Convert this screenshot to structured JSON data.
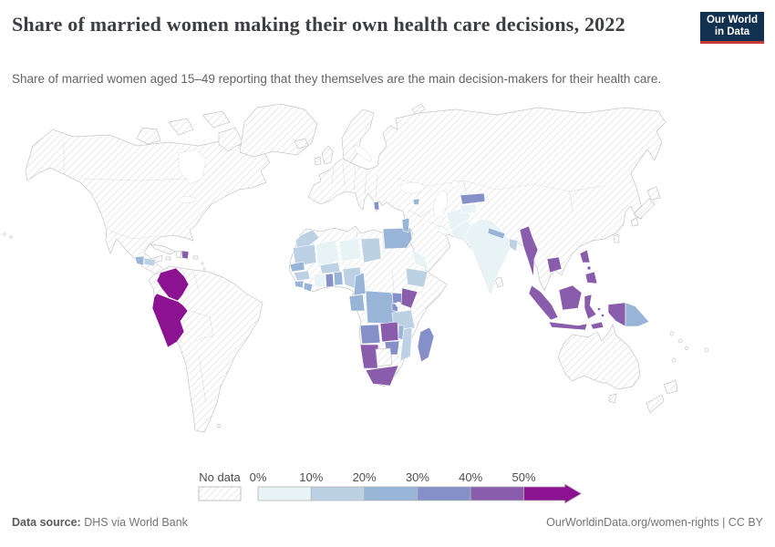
{
  "header": {
    "title": "Share of married women making their own health care decisions, 2022",
    "subtitle": "Share of married women aged 15–49 reporting that they themselves are the main decision-makers for their health care.",
    "logo": {
      "line1": "Our World",
      "line2": "in Data"
    }
  },
  "legend": {
    "no_data_label": "No data",
    "bins": [
      {
        "label": "0%",
        "color": "#e7f3f5"
      },
      {
        "label": "10%",
        "color": "#bdd1e5"
      },
      {
        "label": "20%",
        "color": "#98b5d8"
      },
      {
        "label": "30%",
        "color": "#8590c8"
      },
      {
        "label": "40%",
        "color": "#8a5cac"
      },
      {
        "label": "50%",
        "color": "#8b1290"
      }
    ]
  },
  "footer": {
    "source_label": "Data source:",
    "source_value": " DHS via World Bank",
    "link": "OurWorldinData.org/women-rights | CC BY"
  },
  "chart_data": {
    "type": "choropleth-map",
    "title": "Share of married women making their own health care decisions",
    "year": "2022",
    "unit": "% of married women aged 15–49",
    "legend_bins": [
      "0–10%",
      "10–20%",
      "20–30%",
      "30–40%",
      "40–50%",
      "50%+"
    ],
    "bin_colors": [
      "#e7f3f5",
      "#bdd1e5",
      "#98b5d8",
      "#8590c8",
      "#8a5cac",
      "#8b1290"
    ],
    "country_bins": {
      "guatemala": 2,
      "honduras": 1,
      "dominican-republic": 4,
      "colombia": 5,
      "peru": 5,
      "morocco": 1,
      "mauritania": 1,
      "mali": 0,
      "niger": 0,
      "chad": 1,
      "senegal": 2,
      "guinea": 1,
      "sierra-leone": 2,
      "liberia": 2,
      "cote-divoire": 0,
      "ghana": 3,
      "togo-benin": 2,
      "burkina-faso": 1,
      "nigeria": 1,
      "cameroon": 2,
      "gabon-congo": 2,
      "dr-congo": 2,
      "uganda": 3,
      "kenya": 4,
      "rwanda-burundi": 3,
      "tanzania": 1,
      "ethiopia": 1,
      "egypt": 2,
      "angola": 3,
      "zambia": 4,
      "malawi": 2,
      "mozambique": 1,
      "zimbabwe": 3,
      "namibia": 4,
      "south-africa": 4,
      "madagascar": 3,
      "albania": 3,
      "armenia": 2,
      "jordan": 2,
      "yemen": 0,
      "afghanistan": 0,
      "pakistan": 0,
      "tajikistan": 0,
      "kyrgyzstan": 3,
      "india": 0,
      "nepal": 2,
      "bangladesh": 1,
      "myanmar": 4,
      "cambodia": 4,
      "philippines": 4,
      "indonesia": 4,
      "papua-new-guinea": 2
    },
    "no_data_regions": [
      "United States",
      "Canada",
      "Mexico",
      "Cuba",
      "Haiti",
      "Brazil",
      "Venezuela",
      "Ecuador",
      "Bolivia",
      "Chile",
      "Argentina",
      "Paraguay",
      "Uruguay",
      "Europe",
      "Russia",
      "Kazakhstan",
      "Mongolia",
      "China",
      "Turkey",
      "Iran",
      "Iraq",
      "Saudi Arabia",
      "Oman",
      "Thailand",
      "Vietnam",
      "Laos",
      "Japan",
      "Korea",
      "Sri Lanka",
      "Australia",
      "New Zealand",
      "Algeria",
      "Libya",
      "Sudan",
      "South Sudan",
      "Somalia",
      "Central African Republic",
      "Botswana",
      "Western Sahara"
    ]
  }
}
